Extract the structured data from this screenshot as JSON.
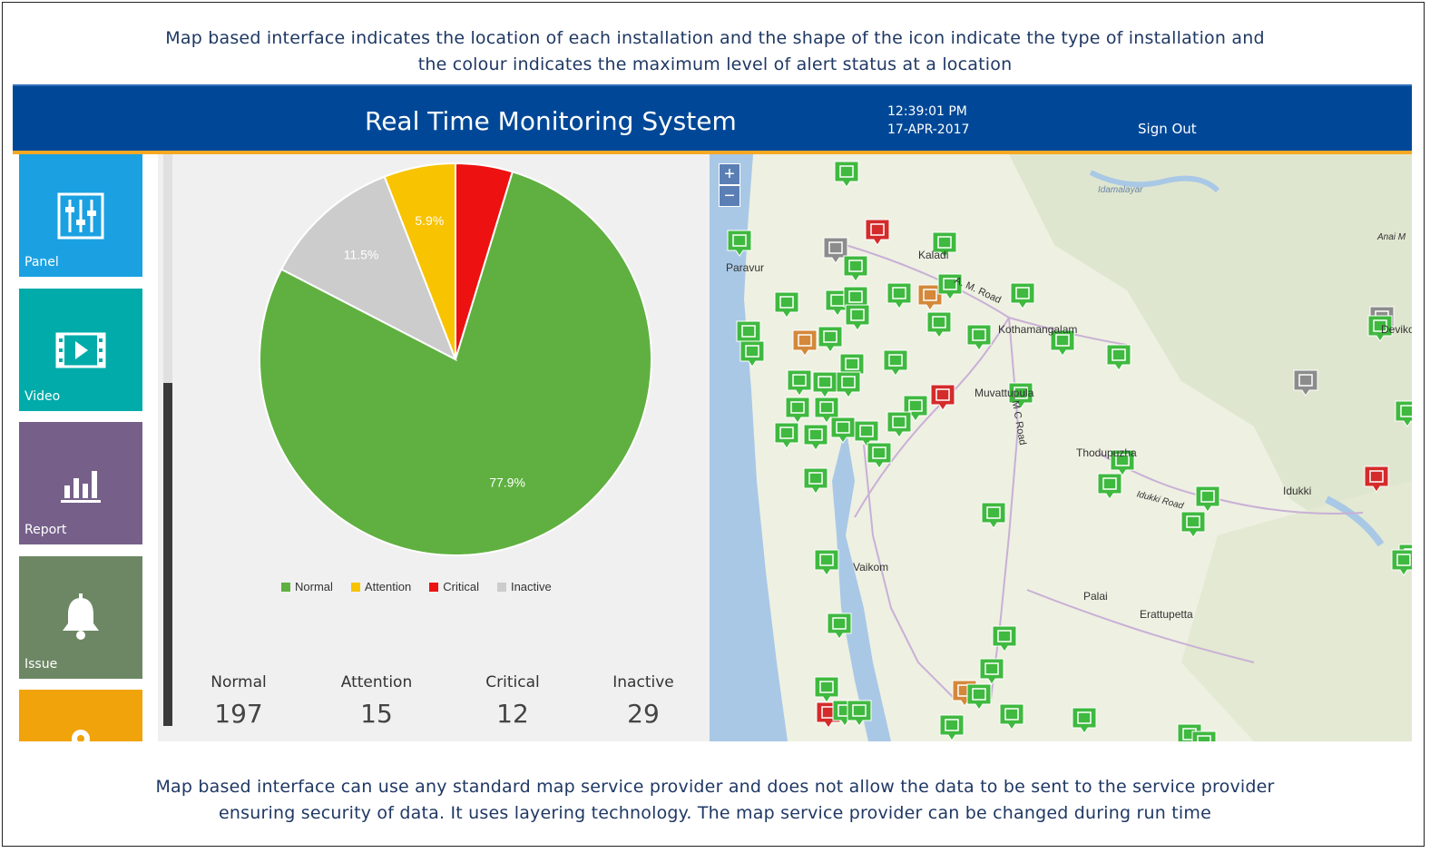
{
  "captions": {
    "top_line1": "Map based interface indicates the location of each installation and the shape of the icon indicate the type of installation and",
    "top_line2": "the colour indicates the maximum level of alert status at a location",
    "bottom_line1": "Map based interface can use any standard map service provider and does not allow the data to be sent to the service provider",
    "bottom_line2": "ensuring security of data. It uses layering technology. The map service provider can be changed during run time"
  },
  "header": {
    "title": "Real Time Monitoring System",
    "time": "12:39:01 PM",
    "date": "17-APR-2017",
    "signout_label": "Sign Out"
  },
  "sidebar": {
    "items": [
      {
        "label": "Panel",
        "color": "#1ba1e2",
        "icon": "sliders-icon"
      },
      {
        "label": "Video",
        "color": "#00aba9",
        "icon": "video-icon"
      },
      {
        "label": "Report",
        "color": "#76608a",
        "icon": "bar-chart-icon"
      },
      {
        "label": "Issue",
        "color": "#6d8764",
        "icon": "bell-icon"
      },
      {
        "label": "",
        "color": "#f0a30a",
        "icon": "user-icon"
      }
    ]
  },
  "chart_data": {
    "type": "pie",
    "slices": [
      {
        "name": "Critical",
        "value": 4.7,
        "label": "",
        "color": "#ee1111"
      },
      {
        "name": "Normal",
        "value": 77.9,
        "label": "77.9%",
        "color": "#5fb040"
      },
      {
        "name": "Inactive",
        "value": 11.5,
        "label": "11.5%",
        "color": "#cccccc"
      },
      {
        "name": "Attention",
        "value": 5.9,
        "label": "5.9%",
        "color": "#f8c300"
      }
    ],
    "legend": [
      "Normal",
      "Attention",
      "Critical",
      "Inactive"
    ],
    "legend_position": "bottom"
  },
  "stats": [
    {
      "label": "Normal",
      "value": "197"
    },
    {
      "label": "Attention",
      "value": "15"
    },
    {
      "label": "Critical",
      "value": "12"
    },
    {
      "label": "Inactive",
      "value": "29"
    }
  ],
  "map": {
    "zoom_in": "+",
    "zoom_out": "−",
    "place_labels": [
      "Kaladi",
      "Paravur",
      "Kothamangalam",
      "Muvattupula",
      "Thodupuzha",
      "Idukki",
      "Vaikom",
      "Palai",
      "Erattupetta",
      "Idamalayar",
      "Anai M",
      "Devikol",
      "A. M. Road",
      "M C Road",
      "Idukki Road"
    ],
    "status_colors": {
      "normal": "#3fb93f",
      "attention": "#d4883a",
      "critical": "#d42b2b",
      "inactive": "#8c8c8c"
    }
  }
}
